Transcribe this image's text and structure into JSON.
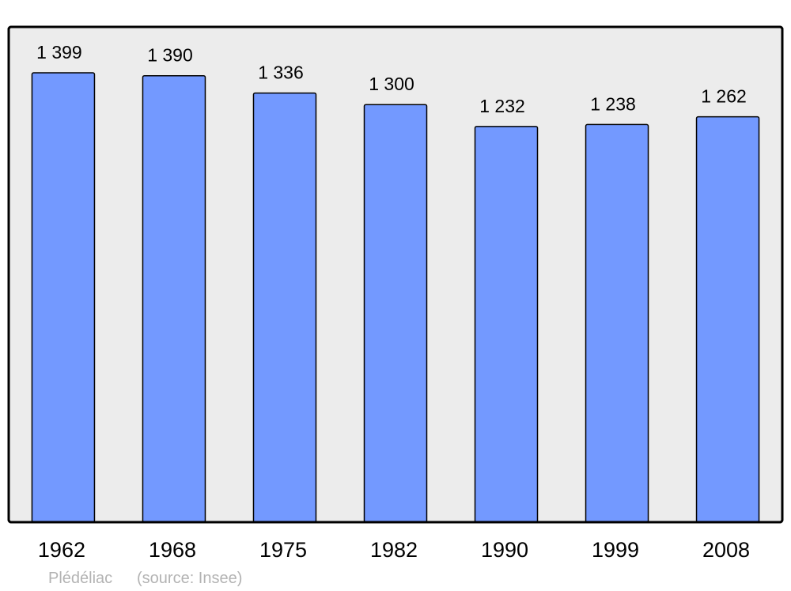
{
  "chart_data": {
    "type": "bar",
    "categories": [
      "1962",
      "1968",
      "1975",
      "1982",
      "1990",
      "1999",
      "2008"
    ],
    "values": [
      1399,
      1390,
      1336,
      1300,
      1232,
      1238,
      1262
    ],
    "value_labels": [
      "1 399",
      "1 390",
      "1 336",
      "1 300",
      "1 232",
      "1 238",
      "1 262"
    ],
    "ylim": [
      0,
      1542
    ],
    "grid": false,
    "colors": {
      "bar": "#7399ff",
      "background": "#ececec",
      "frame": "#000000",
      "footer": "#b3b3b3"
    }
  },
  "footer": {
    "place": "Plédéliac",
    "source": "(source: Insee)"
  }
}
